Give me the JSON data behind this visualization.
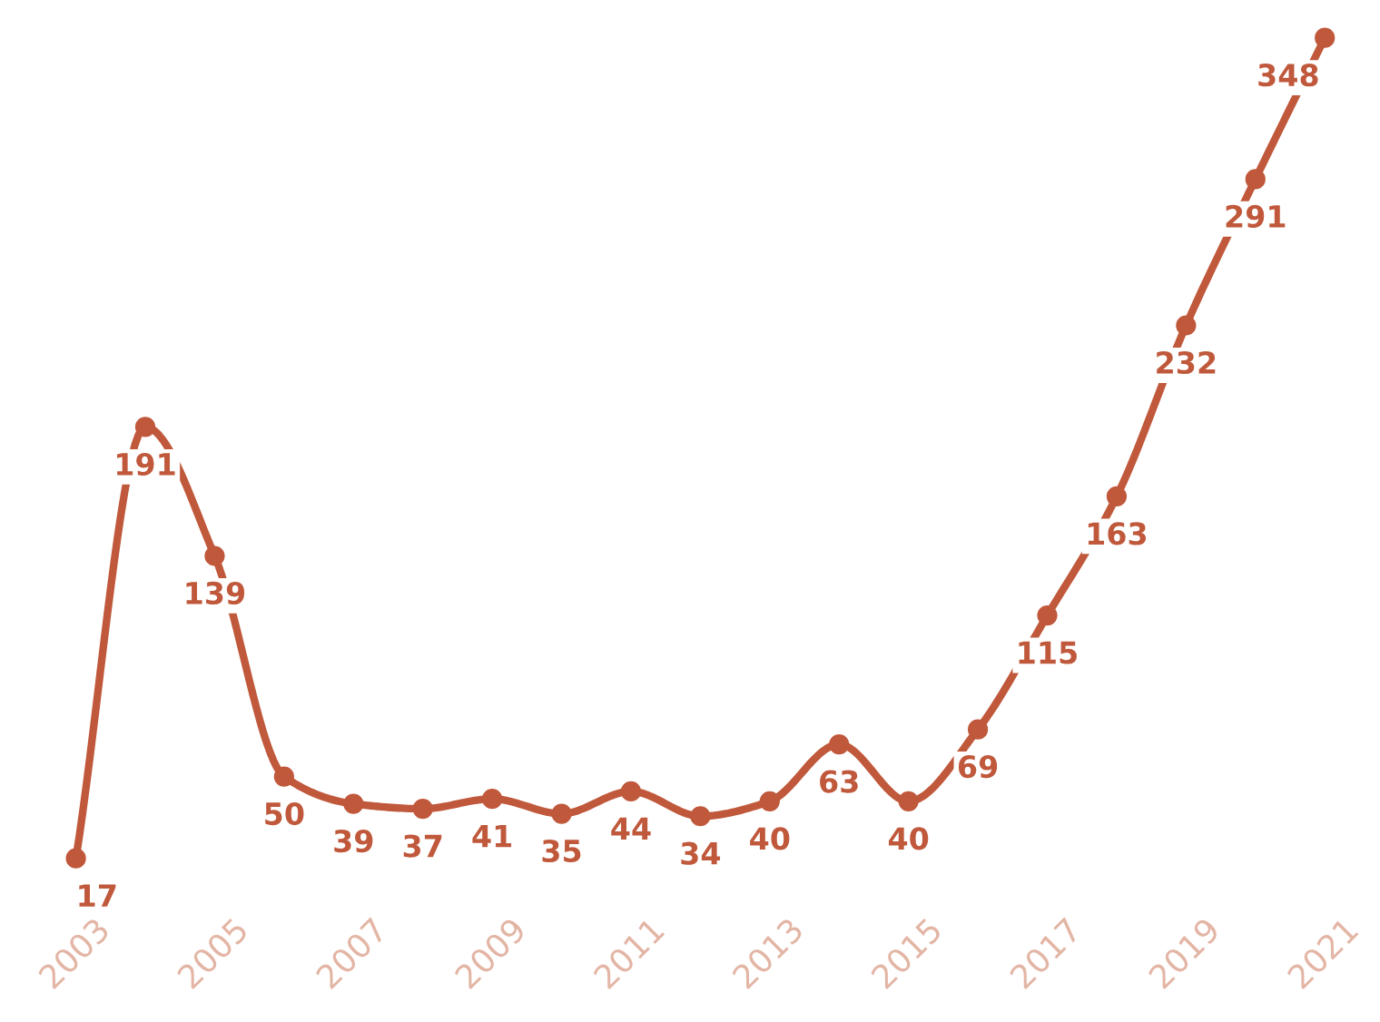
{
  "chart_data": {
    "type": "line",
    "x": [
      2003,
      2004,
      2005,
      2006,
      2007,
      2008,
      2009,
      2010,
      2011,
      2012,
      2013,
      2014,
      2015,
      2016,
      2017,
      2018,
      2019,
      2020,
      2021
    ],
    "series": [
      {
        "color": "#c0583b",
        "values": [
          17,
          191,
          139,
          50,
          39,
          37,
          41,
          35,
          44,
          34,
          40,
          63,
          40,
          69,
          115,
          163,
          232,
          291,
          348
        ]
      }
    ],
    "xlim": [
      2003,
      2021
    ],
    "xticks": [
      2003,
      2005,
      2007,
      2009,
      2011,
      2013,
      2015,
      2017,
      2019,
      2021
    ],
    "tick_labels": "x",
    "data_labels": true,
    "marker": "circle",
    "line_style": "solid",
    "grid": false,
    "legend": false
  }
}
